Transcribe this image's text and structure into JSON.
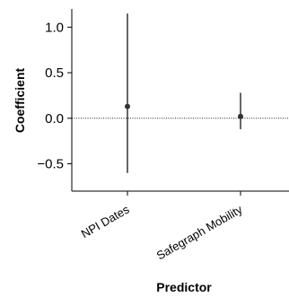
{
  "chart_data": {
    "type": "scatter",
    "categories": [
      "NPI Dates",
      "Safegraph Mobility"
    ],
    "values": [
      0.13,
      0.02
    ],
    "error_bars": [
      {
        "lower": -0.6,
        "upper": 1.15
      },
      {
        "lower": -0.12,
        "upper": 0.28
      }
    ],
    "xlabel": "Predictor",
    "ylabel": "Coefficient",
    "ylim": [
      -0.8,
      1.2
    ],
    "yticks": [
      {
        "value": 1.0,
        "label": "1.0"
      },
      {
        "value": 0.5,
        "label": "0.5"
      },
      {
        "value": 0.0,
        "label": "0.0"
      },
      {
        "value": -0.5,
        "label": "−0.5"
      }
    ],
    "reference_line": 0,
    "grid": false
  }
}
